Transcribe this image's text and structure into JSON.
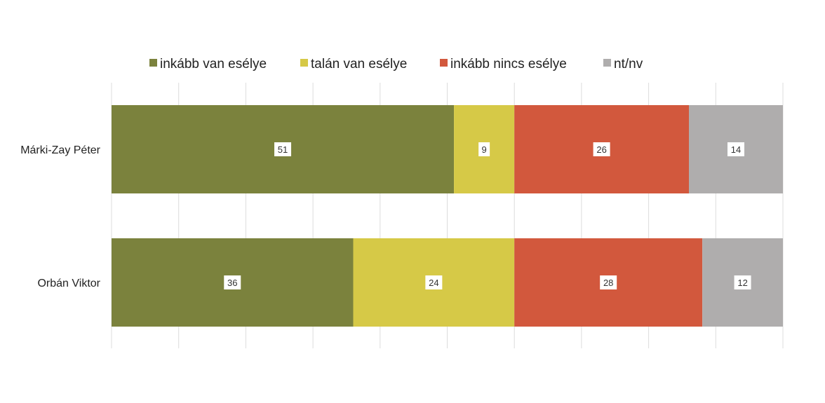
{
  "chart_data": {
    "type": "bar",
    "orientation": "horizontal",
    "stacked": true,
    "categories": [
      "Márki-Zay Péter",
      "Orbán Viktor"
    ],
    "series": [
      {
        "name": "inkább van esélye",
        "color": "#7b823d",
        "values": [
          51,
          36
        ]
      },
      {
        "name": "talán van esélye",
        "color": "#d6c947",
        "values": [
          9,
          24
        ]
      },
      {
        "name": "inkább nincs esélye",
        "color": "#d2583d",
        "values": [
          26,
          28
        ]
      },
      {
        "name": "nt/nv",
        "color": "#afadad",
        "values": [
          14,
          12
        ]
      }
    ],
    "xlim": [
      0,
      100
    ],
    "grid": true,
    "legend_position": "top",
    "data_labels": true
  }
}
